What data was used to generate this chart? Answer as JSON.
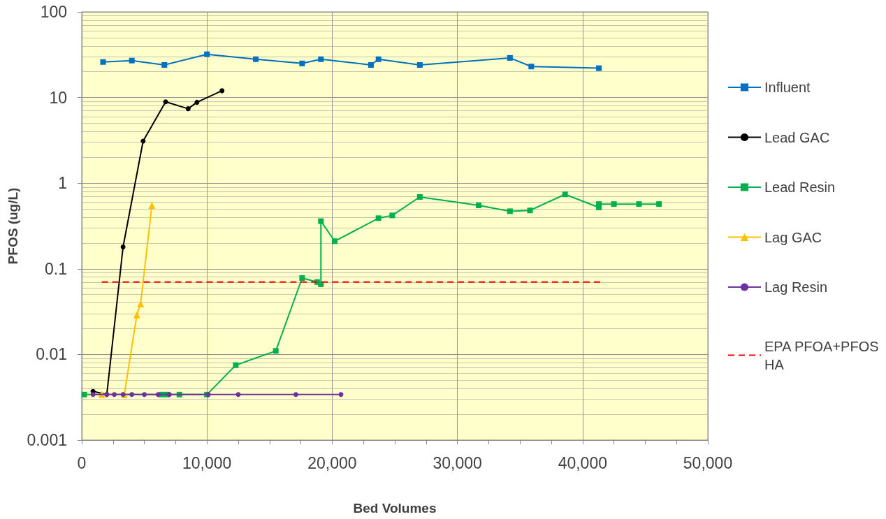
{
  "chart_data": {
    "type": "line",
    "xlabel": "Bed Volumes",
    "ylabel": "PFOS (ug/L)",
    "log": "y",
    "grid": true,
    "legend": "right",
    "xlim": [
      0,
      50000
    ],
    "xticks": [
      0,
      {
        "value": 2500,
        "label": null
      },
      {
        "value": 5000,
        "label": null
      },
      {
        "value": 7500,
        "label": null
      },
      {
        "value": 10000,
        "label": "10,000"
      },
      {
        "value": 12500,
        "label": null
      },
      {
        "value": 15000,
        "label": null
      },
      {
        "value": 17500,
        "label": null
      },
      {
        "value": 20000,
        "label": "20,000"
      },
      {
        "value": 22500,
        "label": null
      },
      {
        "value": 25000,
        "label": null
      },
      {
        "value": 27500,
        "label": null
      },
      {
        "value": 30000,
        "label": "30,000"
      },
      {
        "value": 32500,
        "label": null
      },
      {
        "value": 35000,
        "label": null
      },
      {
        "value": 37500,
        "label": null
      },
      {
        "value": 40000,
        "label": "40,000"
      },
      {
        "value": 42500,
        "label": null
      },
      {
        "value": 45000,
        "label": null
      },
      {
        "value": 47500,
        "label": null
      },
      {
        "value": 50000,
        "label": "50,000"
      }
    ],
    "ylim": [
      0.001,
      100
    ],
    "yticks": [
      0.001,
      0.01,
      0.1,
      1,
      10,
      100
    ],
    "series": [
      {
        "name": "Influent",
        "color": "#0070c0",
        "marker": "square",
        "x": [
          1700,
          4000,
          6600,
          10000,
          13900,
          17600,
          19100,
          23100,
          23700,
          27000,
          34200,
          35900,
          41300
        ],
        "values": [
          26,
          27,
          24,
          32,
          28,
          25,
          28,
          24,
          28,
          24,
          29,
          23,
          22
        ]
      },
      {
        "name": "Lead GAC",
        "color": "#000000",
        "marker": "circle",
        "x": [
          900,
          2000,
          3300,
          4900,
          6700,
          8500,
          9200,
          11200
        ],
        "values": [
          0.0037,
          0.0034,
          0.18,
          3.1,
          8.9,
          7.4,
          8.8,
          12
        ]
      },
      {
        "name": "Lead Resin",
        "color": "#00b050",
        "marker": "square",
        "x": [
          200,
          6400,
          6800,
          7800,
          10000,
          12300,
          15500,
          17600,
          18800,
          19100,
          19100,
          20200,
          23700,
          24800,
          27000,
          31700,
          34200,
          35800,
          38600,
          41300,
          41300,
          42500,
          44500,
          46100
        ],
        "values": [
          0.0034,
          0.0034,
          0.0034,
          0.0034,
          0.0034,
          0.0075,
          0.011,
          0.078,
          0.07,
          0.066,
          0.36,
          0.21,
          0.39,
          0.42,
          0.69,
          0.55,
          0.47,
          0.48,
          0.74,
          0.52,
          0.57,
          0.57,
          0.57,
          0.57
        ]
      },
      {
        "name": "Lag GAC",
        "color": "#ffc000",
        "marker": "triangle",
        "x": [
          1600,
          3400,
          4400,
          4700,
          5600
        ],
        "values": [
          0.0034,
          0.0034,
          0.029,
          0.039,
          0.55
        ]
      },
      {
        "name": "Lag Resin",
        "color": "#7030a0",
        "marker": "circle",
        "x": [
          900,
          2000,
          2600,
          3300,
          4000,
          5000,
          6100,
          7000,
          10100,
          12500,
          17100,
          20700
        ],
        "values": [
          0.0034,
          0.0034,
          0.0034,
          0.0034,
          0.0034,
          0.0034,
          0.0034,
          0.0034,
          0.0034,
          0.0034,
          0.0034,
          0.0034
        ]
      },
      {
        "name": "EPA PFOA+PFOS HA",
        "color": "#ff0000",
        "marker": "none",
        "line_style": "dashed",
        "x": [
          1600,
          41400
        ],
        "values": [
          0.07,
          0.07
        ]
      }
    ]
  }
}
